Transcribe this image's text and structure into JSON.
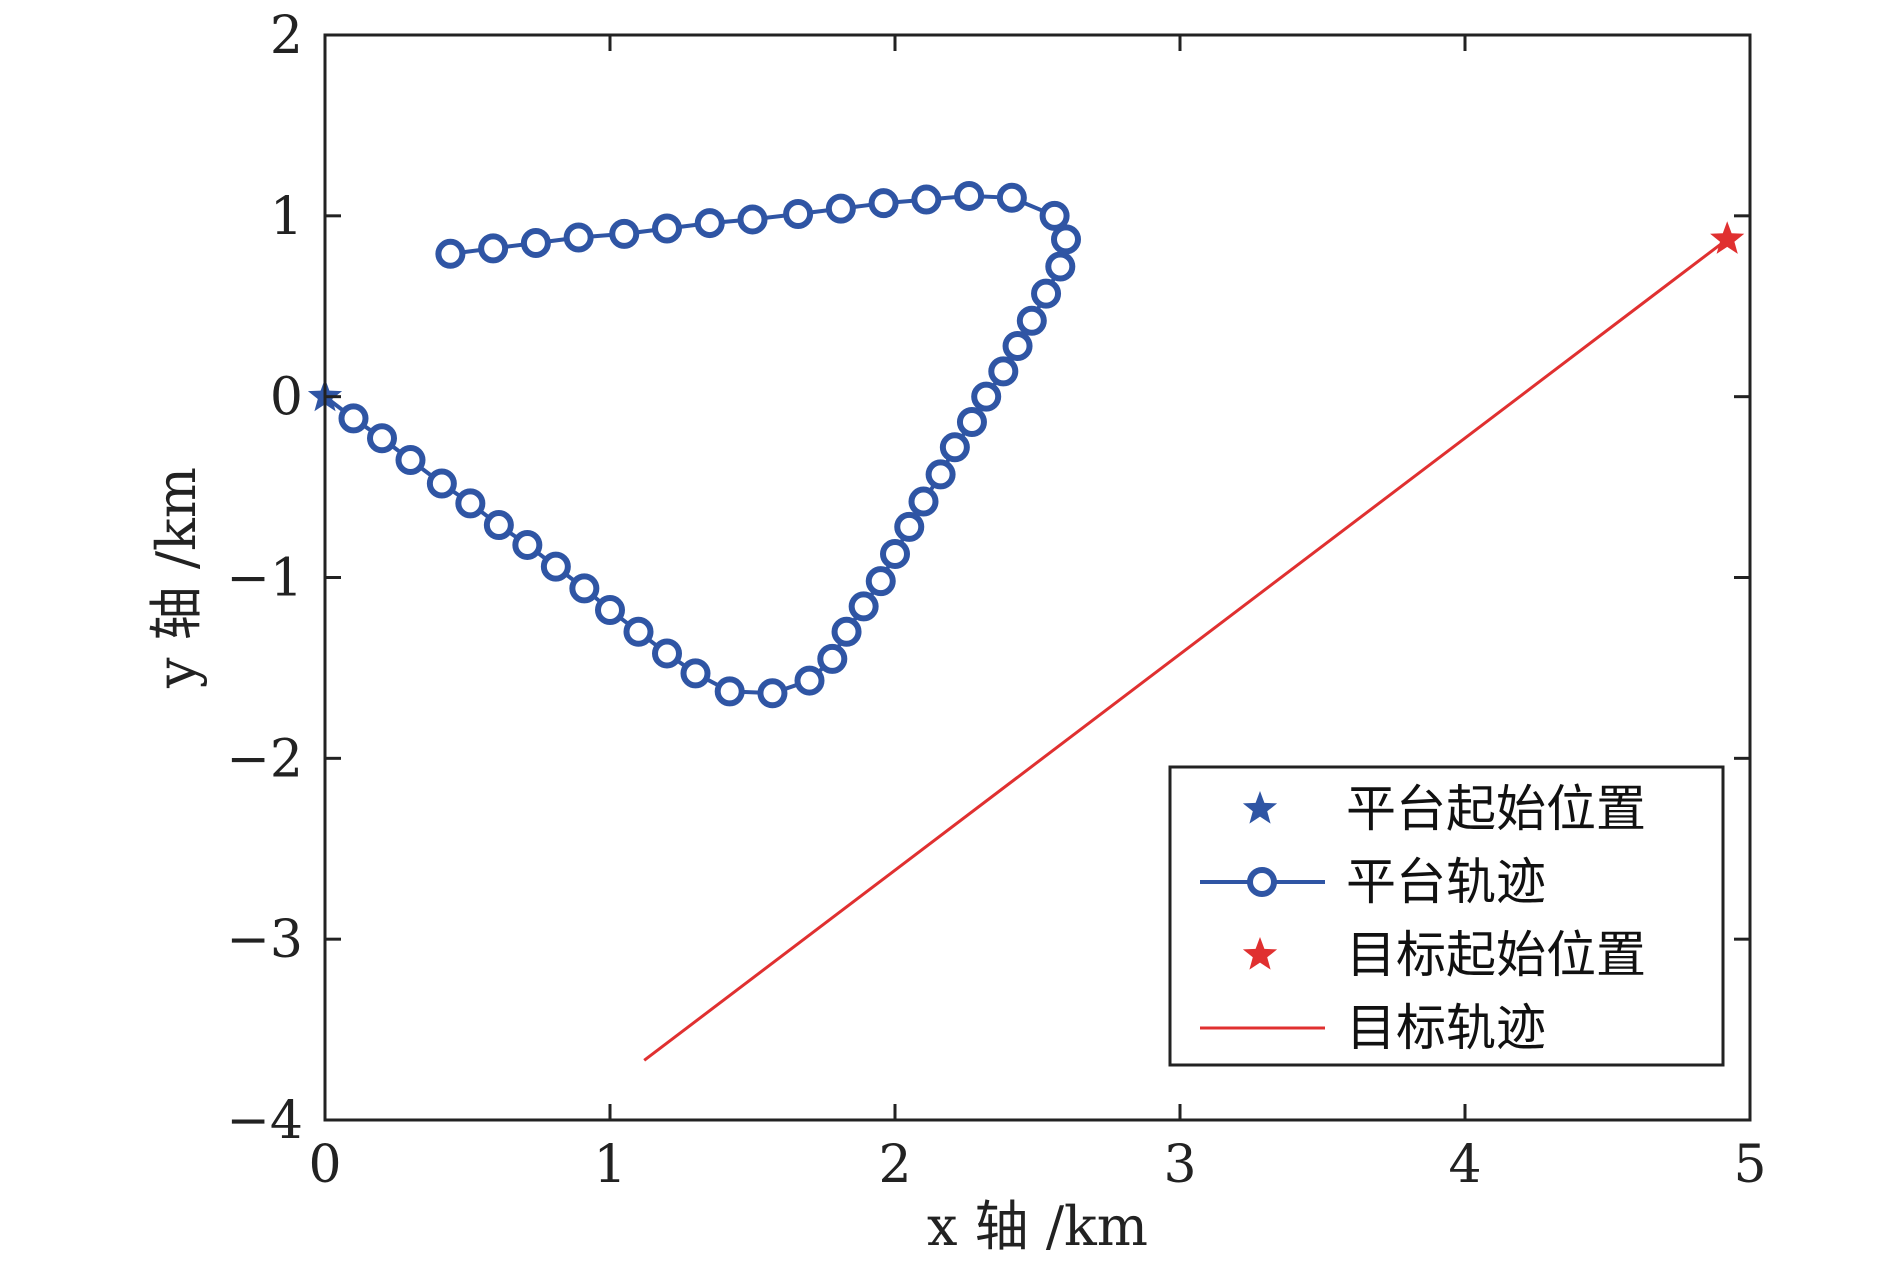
{
  "chart_data": {
    "type": "scatter",
    "xlabel": "x 轴 /km",
    "ylabel": "y 轴 /km",
    "xlim": [
      0,
      5
    ],
    "ylim": [
      -4,
      2
    ],
    "xticks": [
      "0",
      "1",
      "2",
      "3",
      "4",
      "5"
    ],
    "yticks": [
      "−4",
      "−3",
      "−2",
      "−1",
      "0",
      "1",
      "2"
    ],
    "grid": false,
    "legend_position": "bottom-right",
    "colors": {
      "platform": "#2f55a4",
      "target": "#e03030"
    },
    "series": [
      {
        "name": "平台起始位置",
        "kind": "star",
        "points": [
          [
            0,
            0
          ]
        ]
      },
      {
        "name": "平台轨迹",
        "kind": "line-circle",
        "points": [
          [
            0.1,
            -0.12
          ],
          [
            0.2,
            -0.23
          ],
          [
            0.3,
            -0.35
          ],
          [
            0.41,
            -0.48
          ],
          [
            0.51,
            -0.59
          ],
          [
            0.61,
            -0.71
          ],
          [
            0.71,
            -0.82
          ],
          [
            0.81,
            -0.94
          ],
          [
            0.91,
            -1.06
          ],
          [
            1.0,
            -1.18
          ],
          [
            1.1,
            -1.3
          ],
          [
            1.2,
            -1.42
          ],
          [
            1.3,
            -1.53
          ],
          [
            1.42,
            -1.63
          ],
          [
            1.57,
            -1.64
          ],
          [
            1.7,
            -1.57
          ],
          [
            1.78,
            -1.45
          ],
          [
            1.83,
            -1.3
          ],
          [
            1.89,
            -1.16
          ],
          [
            1.95,
            -1.02
          ],
          [
            2.0,
            -0.87
          ],
          [
            2.05,
            -0.72
          ],
          [
            2.1,
            -0.58
          ],
          [
            2.16,
            -0.43
          ],
          [
            2.21,
            -0.28
          ],
          [
            2.27,
            -0.14
          ],
          [
            2.32,
            0.0
          ],
          [
            2.38,
            0.14
          ],
          [
            2.43,
            0.28
          ],
          [
            2.48,
            0.42
          ],
          [
            2.53,
            0.57
          ],
          [
            2.58,
            0.72
          ],
          [
            2.6,
            0.87
          ],
          [
            2.56,
            1.0
          ],
          [
            2.41,
            1.1
          ],
          [
            2.26,
            1.11
          ],
          [
            2.11,
            1.09
          ],
          [
            1.96,
            1.07
          ],
          [
            1.81,
            1.04
          ],
          [
            1.66,
            1.01
          ],
          [
            1.5,
            0.98
          ],
          [
            1.35,
            0.96
          ],
          [
            1.2,
            0.93
          ],
          [
            1.05,
            0.9
          ],
          [
            0.89,
            0.88
          ],
          [
            0.74,
            0.85
          ],
          [
            0.59,
            0.82
          ],
          [
            0.44,
            0.79
          ]
        ]
      },
      {
        "name": "目标起始位置",
        "kind": "star",
        "points": [
          [
            4.92,
            0.87
          ]
        ]
      },
      {
        "name": "目标轨迹",
        "kind": "line",
        "points": [
          [
            4.92,
            0.87
          ],
          [
            1.12,
            -3.67
          ]
        ]
      }
    ]
  }
}
